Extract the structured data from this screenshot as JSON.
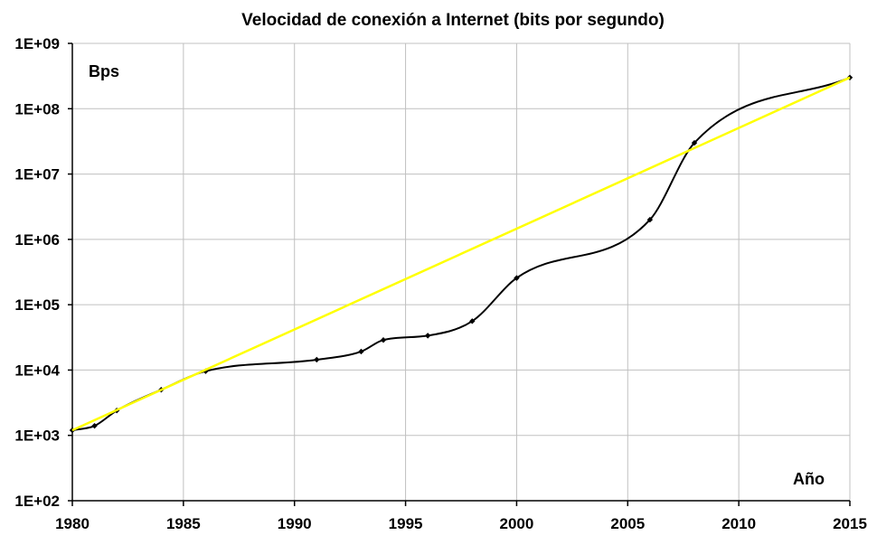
{
  "chart_data": {
    "type": "line",
    "title": "Velocidad de conexión a Internet (bits por segundo)",
    "ylabel": "Bps",
    "xlabel": "Año",
    "y_scale": "log",
    "xlim": [
      1980,
      2015
    ],
    "ylim": [
      100,
      1000000000
    ],
    "x_ticks": [
      "1980",
      "1985",
      "1990",
      "1995",
      "2000",
      "2005",
      "2010",
      "2015"
    ],
    "y_ticks": [
      "1E+02",
      "1E+03",
      "1E+04",
      "1E+05",
      "1E+06",
      "1E+07",
      "1E+08",
      "1E+09"
    ],
    "grid": true,
    "legend": "none",
    "series": [
      {
        "color": "#000000",
        "marker": "diamond",
        "x": [
          1980,
          1981,
          1982,
          1984,
          1986,
          1991,
          1993,
          1994,
          1996,
          1998,
          2000,
          2006,
          2008,
          2015
        ],
        "y": [
          1200,
          1400,
          2400,
          5000,
          9600,
          14400,
          19200,
          28800,
          33600,
          56000,
          256000,
          2000000,
          30000000,
          300000000
        ]
      },
      {
        "color": "#ffff00",
        "marker": "none",
        "x": [
          1980,
          2015
        ],
        "y": [
          1200,
          300000000
        ]
      }
    ]
  }
}
